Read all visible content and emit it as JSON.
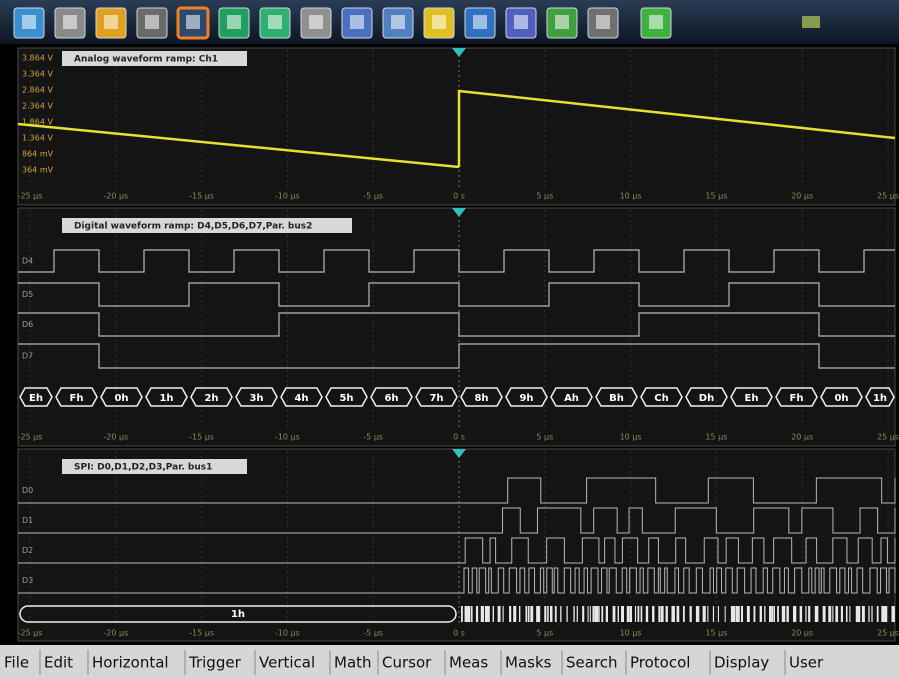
{
  "panels": [
    {
      "title": "Analog waveform ramp: Ch1",
      "y_labels": [
        "3.864 V",
        "3.364 V",
        "2.864 V",
        "2.364 V",
        "1.864 V",
        "1.364 V",
        "864 mV",
        "364 mV"
      ],
      "time_labels": [
        "-25 µs",
        "-20 µs",
        "-15 µs",
        "-10 µs",
        "-5 µs",
        "0 s",
        "5 µs",
        "10 µs",
        "15 µs",
        "20 µs",
        "25 µs"
      ]
    },
    {
      "title": "Digital waveform ramp: D4,D5,D6,D7,Par. bus2",
      "channels": [
        "D4",
        "D5",
        "D6",
        "D7"
      ],
      "bus_values": [
        "Eh",
        "Fh",
        "0h",
        "1h",
        "2h",
        "3h",
        "4h",
        "5h",
        "6h",
        "7h",
        "8h",
        "9h",
        "Ah",
        "Bh",
        "Ch",
        "Dh",
        "Eh",
        "Fh",
        "0h",
        "1h"
      ],
      "time_labels": [
        "-25 µs",
        "-20 µs",
        "-15 µs",
        "-10 µs",
        "-5 µs",
        "0 s",
        "5 µs",
        "10 µs",
        "15 µs",
        "20 µs",
        "25 µs"
      ]
    },
    {
      "title": "SPI: D0,D1,D2,D3,Par. bus1",
      "channels": [
        "D0",
        "D1",
        "D2",
        "D3"
      ],
      "bus_value": "1h",
      "time_labels": [
        "-25 µs",
        "-20 µs",
        "-15 µs",
        "-10 µs",
        "-5 µs",
        "0 s",
        "5 µs",
        "10 µs",
        "15 µs",
        "20 µs",
        "25 µs"
      ]
    }
  ],
  "menu": [
    "File",
    "Edit",
    "Horizontal",
    "Trigger",
    "Vertical",
    "Math",
    "Cursor",
    "Meas",
    "Masks",
    "Search",
    "Protocol",
    "Display",
    "User"
  ]
}
